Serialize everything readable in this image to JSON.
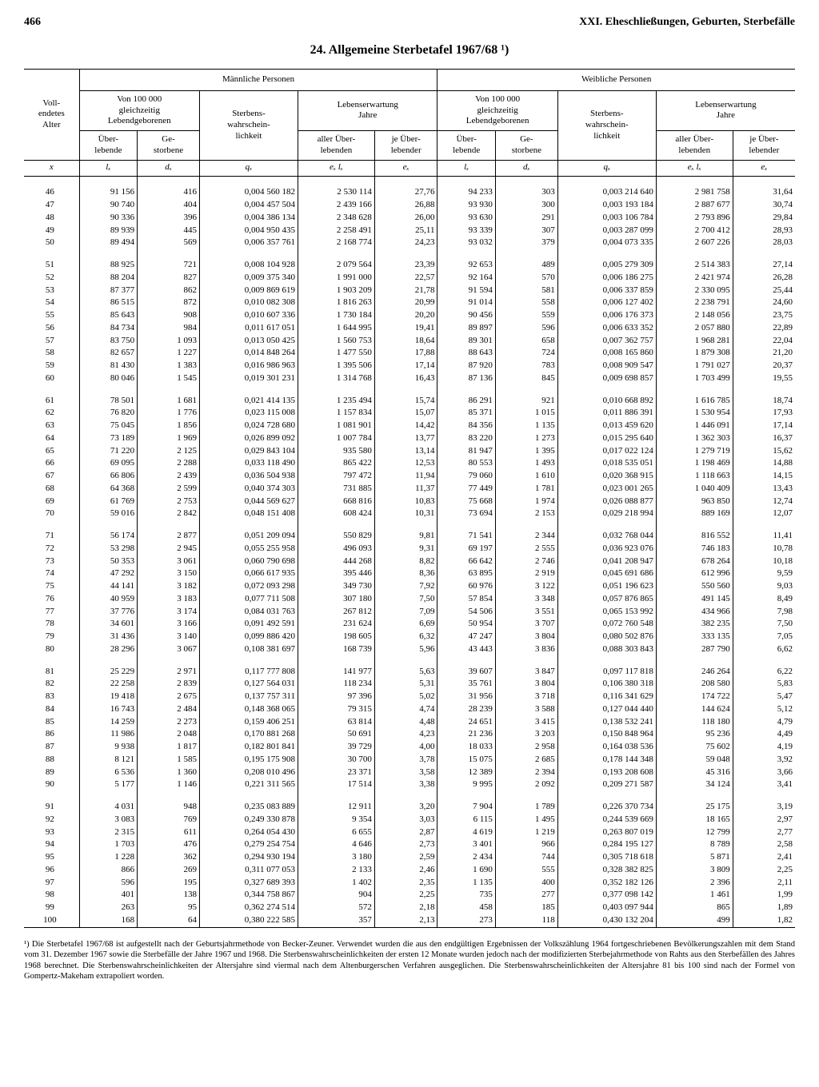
{
  "page_number": "466",
  "running_head": "XXI. Eheschließungen, Geburten, Sterbefälle",
  "title": "24. Allgemeine Sterbetafel 1967/68 ¹)",
  "headers": {
    "male": "Männliche Personen",
    "female": "Weibliche Personen",
    "age": "Voll-\nendetes\nAlter",
    "of100k": "Von 100 000\ngleichzeitig\nLebendgeborenen",
    "qx": "Sterbens-\nwahrschein-\nlichkeit",
    "lifeexp": "Lebenserwartung\nJahre",
    "lx": "Über-\nlebende",
    "dx": "Ge-\nstorbene",
    "exlx": "aller Über-\nlebenden",
    "ex": "je Über-\nlebender",
    "sym_x": "x",
    "sym_lx": "lₓ",
    "sym_dx": "dₓ",
    "sym_qx": "qₓ",
    "sym_exlx": "eₓ lₓ",
    "sym_ex": "eₓ"
  },
  "rows": [
    [
      "46",
      "91 156",
      "416",
      "0,004 560 182",
      "2 530 114",
      "27,76",
      "94 233",
      "303",
      "0,003 214 640",
      "2 981 758",
      "31,64"
    ],
    [
      "47",
      "90 740",
      "404",
      "0,004 457 504",
      "2 439 166",
      "26,88",
      "93 930",
      "300",
      "0,003 193 184",
      "2 887 677",
      "30,74"
    ],
    [
      "48",
      "90 336",
      "396",
      "0,004 386 134",
      "2 348 628",
      "26,00",
      "93 630",
      "291",
      "0,003 106 784",
      "2 793 896",
      "29,84"
    ],
    [
      "49",
      "89 939",
      "445",
      "0,004 950 435",
      "2 258 491",
      "25,11",
      "93 339",
      "307",
      "0,003 287 099",
      "2 700 412",
      "28,93"
    ],
    [
      "50",
      "89 494",
      "569",
      "0,006 357 761",
      "2 168 774",
      "24,23",
      "93 032",
      "379",
      "0,004 073 335",
      "2 607 226",
      "28,03"
    ],
    [
      "51",
      "88 925",
      "721",
      "0,008 104 928",
      "2 079 564",
      "23,39",
      "92 653",
      "489",
      "0,005 279 309",
      "2 514 383",
      "27,14"
    ],
    [
      "52",
      "88 204",
      "827",
      "0,009 375 340",
      "1 991 000",
      "22,57",
      "92 164",
      "570",
      "0,006 186 275",
      "2 421 974",
      "26,28"
    ],
    [
      "53",
      "87 377",
      "862",
      "0,009 869 619",
      "1 903 209",
      "21,78",
      "91 594",
      "581",
      "0,006 337 859",
      "2 330 095",
      "25,44"
    ],
    [
      "54",
      "86 515",
      "872",
      "0,010 082 308",
      "1 816 263",
      "20,99",
      "91 014",
      "558",
      "0,006 127 402",
      "2 238 791",
      "24,60"
    ],
    [
      "55",
      "85 643",
      "908",
      "0,010 607 336",
      "1 730 184",
      "20,20",
      "90 456",
      "559",
      "0,006 176 373",
      "2 148 056",
      "23,75"
    ],
    [
      "56",
      "84 734",
      "984",
      "0,011 617 051",
      "1 644 995",
      "19,41",
      "89 897",
      "596",
      "0,006 633 352",
      "2 057 880",
      "22,89"
    ],
    [
      "57",
      "83 750",
      "1 093",
      "0,013 050 425",
      "1 560 753",
      "18,64",
      "89 301",
      "658",
      "0,007 362 757",
      "1 968 281",
      "22,04"
    ],
    [
      "58",
      "82 657",
      "1 227",
      "0,014 848 264",
      "1 477 550",
      "17,88",
      "88 643",
      "724",
      "0,008 165 860",
      "1 879 308",
      "21,20"
    ],
    [
      "59",
      "81 430",
      "1 383",
      "0,016 986 963",
      "1 395 506",
      "17,14",
      "87 920",
      "783",
      "0,008 909 547",
      "1 791 027",
      "20,37"
    ],
    [
      "60",
      "80 046",
      "1 545",
      "0,019 301 231",
      "1 314 768",
      "16,43",
      "87 136",
      "845",
      "0,009 698 857",
      "1 703 499",
      "19,55"
    ],
    [
      "61",
      "78 501",
      "1 681",
      "0,021 414 135",
      "1 235 494",
      "15,74",
      "86 291",
      "921",
      "0,010 668 892",
      "1 616 785",
      "18,74"
    ],
    [
      "62",
      "76 820",
      "1 776",
      "0,023 115 008",
      "1 157 834",
      "15,07",
      "85 371",
      "1 015",
      "0,011 886 391",
      "1 530 954",
      "17,93"
    ],
    [
      "63",
      "75 045",
      "1 856",
      "0,024 728 680",
      "1 081 901",
      "14,42",
      "84 356",
      "1 135",
      "0,013 459 620",
      "1 446 091",
      "17,14"
    ],
    [
      "64",
      "73 189",
      "1 969",
      "0,026 899 092",
      "1 007 784",
      "13,77",
      "83 220",
      "1 273",
      "0,015 295 640",
      "1 362 303",
      "16,37"
    ],
    [
      "65",
      "71 220",
      "2 125",
      "0,029 843 104",
      "935 580",
      "13,14",
      "81 947",
      "1 395",
      "0,017 022 124",
      "1 279 719",
      "15,62"
    ],
    [
      "66",
      "69 095",
      "2 288",
      "0,033 118 490",
      "865 422",
      "12,53",
      "80 553",
      "1 493",
      "0,018 535 051",
      "1 198 469",
      "14,88"
    ],
    [
      "67",
      "66 806",
      "2 439",
      "0,036 504 938",
      "797 472",
      "11,94",
      "79 060",
      "1 610",
      "0,020 368 915",
      "1 118 663",
      "14,15"
    ],
    [
      "68",
      "64 368",
      "2 599",
      "0,040 374 303",
      "731 885",
      "11,37",
      "77 449",
      "1 781",
      "0,023 001 265",
      "1 040 409",
      "13,43"
    ],
    [
      "69",
      "61 769",
      "2 753",
      "0,044 569 627",
      "668 816",
      "10,83",
      "75 668",
      "1 974",
      "0,026 088 877",
      "963 850",
      "12,74"
    ],
    [
      "70",
      "59 016",
      "2 842",
      "0,048 151 408",
      "608 424",
      "10,31",
      "73 694",
      "2 153",
      "0,029 218 994",
      "889 169",
      "12,07"
    ],
    [
      "71",
      "56 174",
      "2 877",
      "0,051 209 094",
      "550 829",
      "9,81",
      "71 541",
      "2 344",
      "0,032 768 044",
      "816 552",
      "11,41"
    ],
    [
      "72",
      "53 298",
      "2 945",
      "0,055 255 958",
      "496 093",
      "9,31",
      "69 197",
      "2 555",
      "0,036 923 076",
      "746 183",
      "10,78"
    ],
    [
      "73",
      "50 353",
      "3 061",
      "0,060 790 698",
      "444 268",
      "8,82",
      "66 642",
      "2 746",
      "0,041 208 947",
      "678 264",
      "10,18"
    ],
    [
      "74",
      "47 292",
      "3 150",
      "0,066 617 935",
      "395 446",
      "8,36",
      "63 895",
      "2 919",
      "0,045 691 686",
      "612 996",
      "9,59"
    ],
    [
      "75",
      "44 141",
      "3 182",
      "0,072 093 298",
      "349 730",
      "7,92",
      "60 976",
      "3 122",
      "0,051 196 623",
      "550 560",
      "9,03"
    ],
    [
      "76",
      "40 959",
      "3 183",
      "0,077 711 508",
      "307 180",
      "7,50",
      "57 854",
      "3 348",
      "0,057 876 865",
      "491 145",
      "8,49"
    ],
    [
      "77",
      "37 776",
      "3 174",
      "0,084 031 763",
      "267 812",
      "7,09",
      "54 506",
      "3 551",
      "0,065 153 992",
      "434 966",
      "7,98"
    ],
    [
      "78",
      "34 601",
      "3 166",
      "0,091 492 591",
      "231 624",
      "6,69",
      "50 954",
      "3 707",
      "0,072 760 548",
      "382 235",
      "7,50"
    ],
    [
      "79",
      "31 436",
      "3 140",
      "0,099 886 420",
      "198 605",
      "6,32",
      "47 247",
      "3 804",
      "0,080 502 876",
      "333 135",
      "7,05"
    ],
    [
      "80",
      "28 296",
      "3 067",
      "0,108 381 697",
      "168 739",
      "5,96",
      "43 443",
      "3 836",
      "0,088 303 843",
      "287 790",
      "6,62"
    ],
    [
      "81",
      "25 229",
      "2 971",
      "0,117 777 808",
      "141 977",
      "5,63",
      "39 607",
      "3 847",
      "0,097 117 818",
      "246 264",
      "6,22"
    ],
    [
      "82",
      "22 258",
      "2 839",
      "0,127 564 031",
      "118 234",
      "5,31",
      "35 761",
      "3 804",
      "0,106 380 318",
      "208 580",
      "5,83"
    ],
    [
      "83",
      "19 418",
      "2 675",
      "0,137 757 311",
      "97 396",
      "5,02",
      "31 956",
      "3 718",
      "0,116 341 629",
      "174 722",
      "5,47"
    ],
    [
      "84",
      "16 743",
      "2 484",
      "0,148 368 065",
      "79 315",
      "4,74",
      "28 239",
      "3 588",
      "0,127 044 440",
      "144 624",
      "5,12"
    ],
    [
      "85",
      "14 259",
      "2 273",
      "0,159 406 251",
      "63 814",
      "4,48",
      "24 651",
      "3 415",
      "0,138 532 241",
      "118 180",
      "4,79"
    ],
    [
      "86",
      "11 986",
      "2 048",
      "0,170 881 268",
      "50 691",
      "4,23",
      "21 236",
      "3 203",
      "0,150 848 964",
      "95 236",
      "4,49"
    ],
    [
      "87",
      "9 938",
      "1 817",
      "0,182 801 841",
      "39 729",
      "4,00",
      "18 033",
      "2 958",
      "0,164 038 536",
      "75 602",
      "4,19"
    ],
    [
      "88",
      "8 121",
      "1 585",
      "0,195 175 908",
      "30 700",
      "3,78",
      "15 075",
      "2 685",
      "0,178 144 348",
      "59 048",
      "3,92"
    ],
    [
      "89",
      "6 536",
      "1 360",
      "0,208 010 496",
      "23 371",
      "3,58",
      "12 389",
      "2 394",
      "0,193 208 608",
      "45 316",
      "3,66"
    ],
    [
      "90",
      "5 177",
      "1 146",
      "0,221 311 565",
      "17 514",
      "3,38",
      "9 995",
      "2 092",
      "0,209 271 587",
      "34 124",
      "3,41"
    ],
    [
      "91",
      "4 031",
      "948",
      "0,235 083 889",
      "12 911",
      "3,20",
      "7 904",
      "1 789",
      "0,226 370 734",
      "25 175",
      "3,19"
    ],
    [
      "92",
      "3 083",
      "769",
      "0,249 330 878",
      "9 354",
      "3,03",
      "6 115",
      "1 495",
      "0,244 539 669",
      "18 165",
      "2,97"
    ],
    [
      "93",
      "2 315",
      "611",
      "0,264 054 430",
      "6 655",
      "2,87",
      "4 619",
      "1 219",
      "0,263 807 019",
      "12 799",
      "2,77"
    ],
    [
      "94",
      "1 703",
      "476",
      "0,279 254 754",
      "4 646",
      "2,73",
      "3 401",
      "966",
      "0,284 195 127",
      "8 789",
      "2,58"
    ],
    [
      "95",
      "1 228",
      "362",
      "0,294 930 194",
      "3 180",
      "2,59",
      "2 434",
      "744",
      "0,305 718 618",
      "5 871",
      "2,41"
    ],
    [
      "96",
      "866",
      "269",
      "0,311 077 053",
      "2 133",
      "2,46",
      "1 690",
      "555",
      "0,328 382 825",
      "3 809",
      "2,25"
    ],
    [
      "97",
      "596",
      "195",
      "0,327 689 393",
      "1 402",
      "2,35",
      "1 135",
      "400",
      "0,352 182 126",
      "2 396",
      "2,11"
    ],
    [
      "98",
      "401",
      "138",
      "0,344 758 867",
      "904",
      "2,25",
      "735",
      "277",
      "0,377 098 142",
      "1 461",
      "1,99"
    ],
    [
      "99",
      "263",
      "95",
      "0,362 274 514",
      "572",
      "2,18",
      "458",
      "185",
      "0,403 097 944",
      "865",
      "1,89"
    ],
    [
      "100",
      "168",
      "64",
      "0,380 222 585",
      "357",
      "2,13",
      "273",
      "118",
      "0,430 132 204",
      "499",
      "1,82"
    ]
  ],
  "group_breaks": [
    5,
    15,
    25,
    35,
    45
  ],
  "footnote": "¹) Die Sterbetafel 1967/68 ist aufgestellt nach der Geburtsjahrmethode von Becker-Zeuner. Verwendet wurden die aus den endgültigen Ergebnissen der Volkszählung 1964 fortgeschriebenen Bevölkerungszahlen mit dem Stand vom 31. Dezember 1967 sowie die Sterbefälle der Jahre 1967 und 1968. Die Sterbenswahrscheinlichkeiten der ersten 12 Monate wurden jedoch nach der modifizierten Sterbejahrmethode von Rahts aus den Sterbefällen des Jahres 1968 berechnet. Die Sterbenswahrscheinlichkeiten der Altersjahre sind viermal nach dem Altenburgerschen Verfahren ausgeglichen. Die Sterbenswahrscheinlichkeiten der Altersjahre 81 bis 100 sind nach der Formel von Gompertz-Makeham extrapoliert worden.",
  "colors": {
    "text": "#000000",
    "background": "#ffffff",
    "rule": "#000000"
  }
}
